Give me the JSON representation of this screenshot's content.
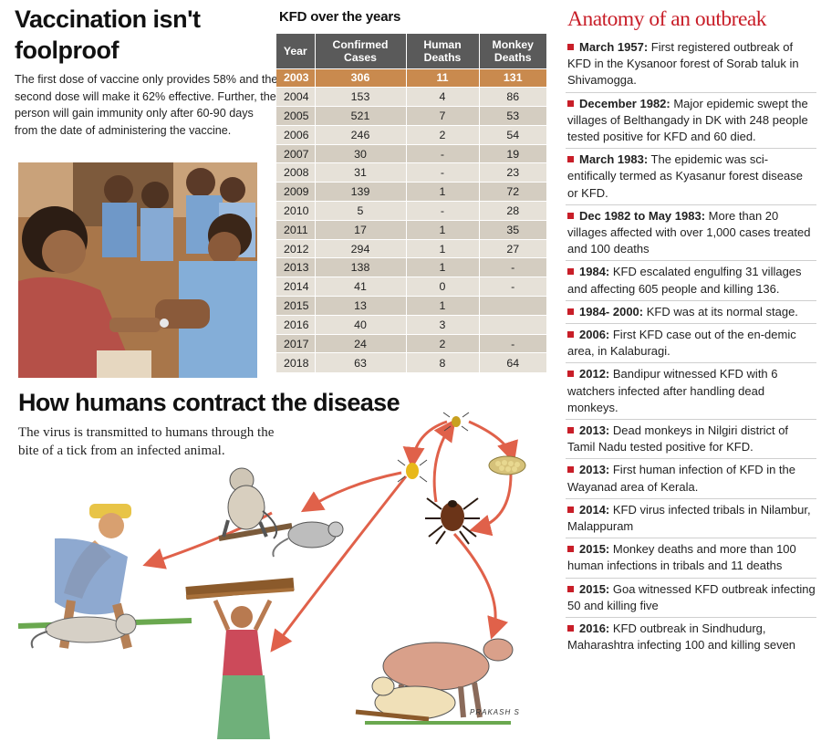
{
  "vaccination": {
    "title_line1": "Vaccination isn't",
    "title_line2": "foolproof",
    "body": "The first dose of vaccine only provides 58% and the second dose will make it 62% effective. Further, the person will gain immunity only after 60-90 days from the date of administering the vaccine."
  },
  "table": {
    "title": "KFD over the years",
    "headers": [
      "Year",
      "Confirmed Cases",
      "Human Deaths",
      "Monkey Deaths"
    ],
    "rows": [
      [
        "2003",
        "306",
        "11",
        "131"
      ],
      [
        "2004",
        "153",
        "4",
        "86"
      ],
      [
        "2005",
        "521",
        "7",
        "53"
      ],
      [
        "2006",
        "246",
        "2",
        "54"
      ],
      [
        "2007",
        "30",
        "-",
        "19"
      ],
      [
        "2008",
        "31",
        "-",
        "23"
      ],
      [
        "2009",
        "139",
        "1",
        "72"
      ],
      [
        "2010",
        "5",
        "-",
        "28"
      ],
      [
        "2011",
        "17",
        "1",
        "35"
      ],
      [
        "2012",
        "294",
        "1",
        "27"
      ],
      [
        "2013",
        "138",
        "1",
        "-"
      ],
      [
        "2014",
        "41",
        "0",
        "-"
      ],
      [
        "2015",
        "13",
        "1",
        ""
      ],
      [
        "2016",
        "40",
        "3",
        ""
      ],
      [
        "2017",
        "24",
        "2",
        "-"
      ],
      [
        "2018",
        "63",
        "8",
        "64"
      ]
    ],
    "highlight_color": "#c98a4e"
  },
  "how": {
    "title": "How humans contract the disease",
    "body": "The virus is transmitted to humans through the bite of a tick from an infected animal.",
    "signature": "PRAKASH S",
    "arrow_color": "#e0614a"
  },
  "anatomy": {
    "title": "Anatomy of an outbreak",
    "accent": "#c81e28",
    "items": [
      {
        "date": "March 1957:",
        "text": " First registered outbreak of KFD in the Kysanoor forest of Sorab taluk in Shivamogga."
      },
      {
        "date": "December 1982:",
        "text": " Major epidemic swept the villages of Belthangady in DK with 248 people tested positive for KFD and 60 died."
      },
      {
        "date": "March 1983:",
        "text": " The epidemic was sci-entifically termed as Kyasanur forest disease or KFD."
      },
      {
        "date": "Dec 1982 to May 1983:",
        "text": " More than 20 villages affected with over 1,000 cases treated and 100 deaths"
      },
      {
        "date": "1984:",
        "text": " KFD escalated engulfing 31 villages and affecting 605 people and killing 136."
      },
      {
        "date": "1984- 2000:",
        "text": " KFD was at its normal stage."
      },
      {
        "date": "2006:",
        "text": " First KFD case out of the en-demic area, in Kalaburagi."
      },
      {
        "date": "2012:",
        "text": " Bandipur witnessed KFD with 6 watchers infected after handling dead monkeys."
      },
      {
        "date": "2013:",
        "text": " Dead monkeys in Nilgiri district of Tamil Nadu tested positive for KFD."
      },
      {
        "date": "2013:",
        "text": " First human infection of KFD in the Wayanad area of Kerala."
      },
      {
        "date": "2014:",
        "text": " KFD virus infected tribals in Nilambur, Malappuram"
      },
      {
        "date": "2015:",
        "text": " Monkey deaths and more than 100 human infections in tribals and 11 deaths"
      },
      {
        "date": "2015:",
        "text": " Goa witnessed KFD outbreak infecting 50 and killing five"
      },
      {
        "date": "2016:",
        "text": " KFD outbreak in Sindhudurg, Maharashtra infecting 100 and killing seven"
      }
    ]
  }
}
